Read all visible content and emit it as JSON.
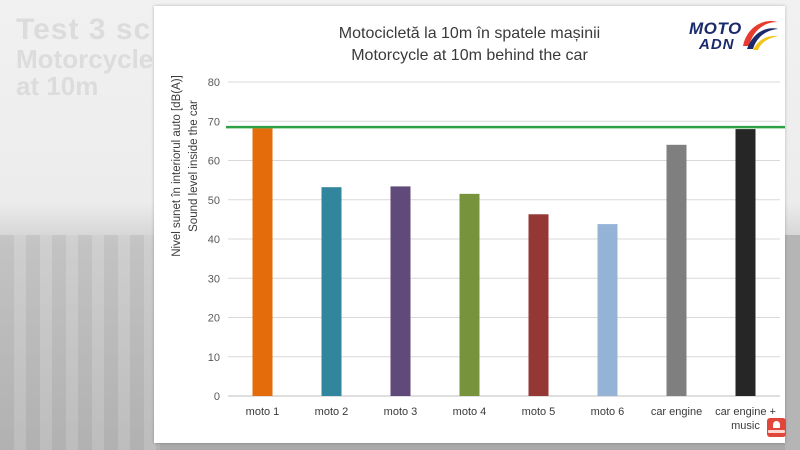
{
  "background": {
    "title_lines": [
      "Test 3 sc",
      "Motorcycle",
      "at 10m"
    ]
  },
  "logo": {
    "line1": "MOTO",
    "line2": "ADN",
    "colors": {
      "text": "#1b2a6b",
      "swoosh_red": "#e63b2e",
      "swoosh_blue": "#1b2a6b",
      "swoosh_yellow": "#f2c318"
    }
  },
  "subscribe_badge": {
    "icon": "bell-icon",
    "color": "#e0463a"
  },
  "chart_data": {
    "type": "bar",
    "title": "Motocicletă la 10m în spatele mașinii",
    "subtitle": "Motorcycle at 10m behind the car",
    "ylabel_line1": "Nivel sunet în interiorul auto [dB(A)]",
    "ylabel_line2": "Sound level inside the car",
    "xlabel": "",
    "ylim": [
      0,
      80
    ],
    "yticks": [
      0,
      10,
      20,
      30,
      40,
      50,
      60,
      70,
      80
    ],
    "grid": "horizontal",
    "legend": "none",
    "reference_line": {
      "value": 68.5,
      "color": "#2ea043"
    },
    "categories": [
      [
        "moto 1"
      ],
      [
        "moto 2"
      ],
      [
        "moto 3"
      ],
      [
        "moto 4"
      ],
      [
        "moto 5"
      ],
      [
        "moto 6"
      ],
      [
        "car engine"
      ],
      [
        "car engine +",
        "music"
      ]
    ],
    "values": [
      68.2,
      53.2,
      53.4,
      51.5,
      46.3,
      43.8,
      64.0,
      68.0
    ],
    "colors": [
      "#e46c0a",
      "#31859c",
      "#604a7b",
      "#77933c",
      "#953735",
      "#95b3d7",
      "#7f7f7f",
      "#262626"
    ]
  }
}
